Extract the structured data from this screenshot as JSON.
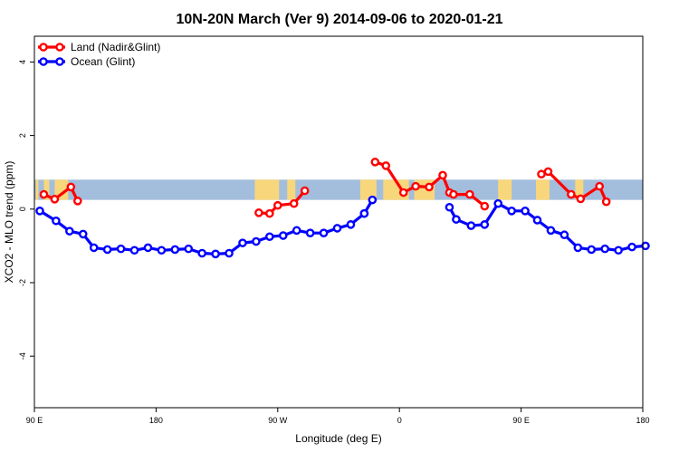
{
  "chart_data": {
    "type": "line",
    "title": "10N-20N March (Ver 9)   2014-09-06 to 2020-01-21",
    "xlabel": "Longitude (deg E)",
    "ylabel": "XCO2 - MLO trend (ppm)",
    "xlim": [
      90,
      540
    ],
    "ylim": [
      -5.4,
      4.7
    ],
    "x_ticks": [
      {
        "value": 90,
        "label": "90 E"
      },
      {
        "value": 180,
        "label": "180"
      },
      {
        "value": 270,
        "label": "90 W"
      },
      {
        "value": 360,
        "label": "0"
      },
      {
        "value": 450,
        "label": "90 E"
      },
      {
        "value": 540,
        "label": "180"
      }
    ],
    "y_ticks": [
      {
        "value": 4,
        "label": "4"
      },
      {
        "value": 2,
        "label": "2"
      },
      {
        "value": 0,
        "label": "0"
      },
      {
        "value": -2,
        "label": "-2"
      },
      {
        "value": -4,
        "label": "-4"
      }
    ],
    "map_band": {
      "y_range": [
        0.25,
        0.8
      ],
      "ocean_color": "#a3bddd",
      "land_color": "#f8d77c",
      "land_segments": [
        [
          91,
          93
        ],
        [
          97,
          101
        ],
        [
          105,
          115
        ],
        [
          253,
          271
        ],
        [
          277,
          283
        ],
        [
          331,
          343
        ],
        [
          348,
          367
        ],
        [
          371,
          386
        ],
        [
          433,
          443
        ],
        [
          461,
          471
        ],
        [
          490,
          496
        ]
      ]
    },
    "legend": {
      "placement": "top-left",
      "entries": [
        {
          "label": "Land (Nadir&Glint)",
          "color": "#ff0000"
        },
        {
          "label": "Ocean (Glint)",
          "color": "#0000ff"
        }
      ]
    },
    "series": [
      {
        "name": "Land (Nadir&Glint)",
        "color": "#ff0000",
        "segments": [
          {
            "x": [
              97,
              105,
              117,
              122
            ],
            "y": [
              0.4,
              0.27,
              0.6,
              0.22
            ]
          },
          {
            "x": [
              256,
              264,
              270,
              282,
              290
            ],
            "y": [
              -0.1,
              -0.12,
              0.1,
              0.15,
              0.5
            ]
          },
          {
            "x": [
              342,
              350,
              363,
              372,
              382,
              392,
              397,
              400,
              412,
              423
            ],
            "y": [
              1.28,
              1.18,
              0.45,
              0.62,
              0.6,
              0.92,
              0.45,
              0.4,
              0.4,
              0.08
            ]
          },
          {
            "x": [
              465,
              470,
              487,
              494,
              508,
              513
            ],
            "y": [
              0.95,
              1.02,
              0.4,
              0.28,
              0.62,
              0.2
            ]
          }
        ]
      },
      {
        "name": "Ocean (Glint)",
        "color": "#0000ff",
        "segments": [
          {
            "x": [
              94,
              106,
              116,
              126,
              134,
              144,
              154,
              164,
              174,
              184,
              194,
              204,
              214,
              224,
              234,
              244,
              254,
              264,
              274,
              284,
              294,
              304,
              314,
              324,
              334
            ],
            "y": [
              -0.05,
              -0.32,
              -0.6,
              -0.68,
              -1.05,
              -1.1,
              -1.08,
              -1.12,
              -1.05,
              -1.12,
              -1.1,
              -1.08,
              -1.2,
              -1.22,
              -1.2,
              -0.92,
              -0.88,
              -0.75,
              -0.72,
              -0.58,
              -0.65,
              -0.65,
              -0.52,
              -0.42,
              -0.12
            ]
          },
          {
            "x": [
              334,
              340
            ],
            "y": [
              -0.12,
              0.25
            ]
          },
          {
            "x": [
              397,
              402,
              413,
              423,
              433,
              443,
              453,
              462,
              472,
              482,
              492,
              502,
              512,
              522,
              532,
              542
            ],
            "y": [
              0.05,
              -0.28,
              -0.45,
              -0.42,
              0.15,
              -0.05,
              -0.05,
              -0.3,
              -0.58,
              -0.7,
              -1.05,
              -1.1,
              -1.08,
              -1.12,
              -1.03,
              -1.0
            ]
          }
        ]
      }
    ]
  }
}
